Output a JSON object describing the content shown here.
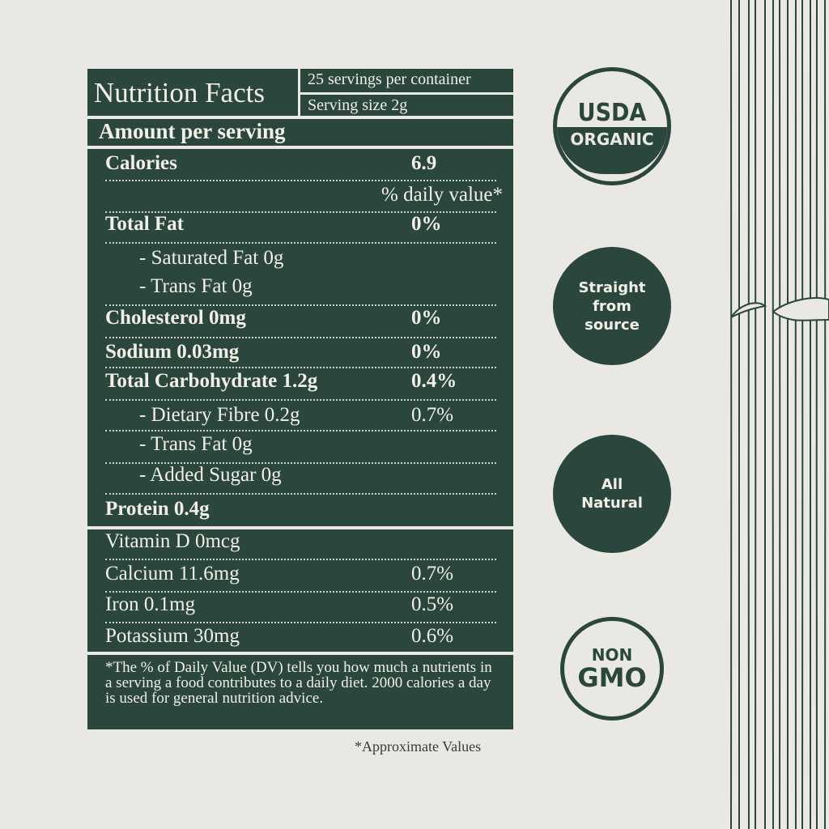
{
  "label": {
    "title": "Nutrition Facts",
    "servings": "25 servings per container",
    "serving_size": "Serving size 2g",
    "amount_per_serving": "Amount per serving",
    "dv_header": "% daily value*",
    "calories": {
      "label": "Calories",
      "value": "6.9"
    },
    "rows": [
      {
        "label": "Total Fat",
        "value": "0%"
      },
      {
        "label": "- Saturated Fat 0g",
        "value": ""
      },
      {
        "label": "- Trans Fat 0g",
        "value": ""
      },
      {
        "label": "Cholesterol 0mg",
        "value": "0%"
      },
      {
        "label": "Sodium 0.03mg",
        "value": "0%"
      },
      {
        "label": "Total Carbohydrate 1.2g",
        "value": "0.4%"
      },
      {
        "label": "- Dietary Fibre 0.2g",
        "value": "0.7%"
      },
      {
        "label": "- Trans Fat 0g",
        "value": ""
      },
      {
        "label": "- Added Sugar 0g",
        "value": ""
      },
      {
        "label": "Protein 0.4g",
        "value": ""
      }
    ],
    "vitamins": [
      {
        "label": "Vitamin D 0mcg",
        "value": ""
      },
      {
        "label": "Calcium 11.6mg",
        "value": "0.7%"
      },
      {
        "label": "Iron 0.1mg",
        "value": "0.5%"
      },
      {
        "label": "Potassium 30mg",
        "value": "0.6%"
      }
    ],
    "footnote": "*The % of Daily Value (DV) tells you how much a nutrients in a serving a food contributes to a daily diet. 2000 calories a day is used for general nutrition advice."
  },
  "approximate_note": "*Approximate Values",
  "badges": {
    "usda_top": "USDA",
    "usda_bottom": "ORGANIC",
    "straight": "Straight from source",
    "natural": "All Natural",
    "non": "NON",
    "gmo": "GMO"
  },
  "colors": {
    "green": "#2b473d",
    "background": "#e9e8e2"
  }
}
